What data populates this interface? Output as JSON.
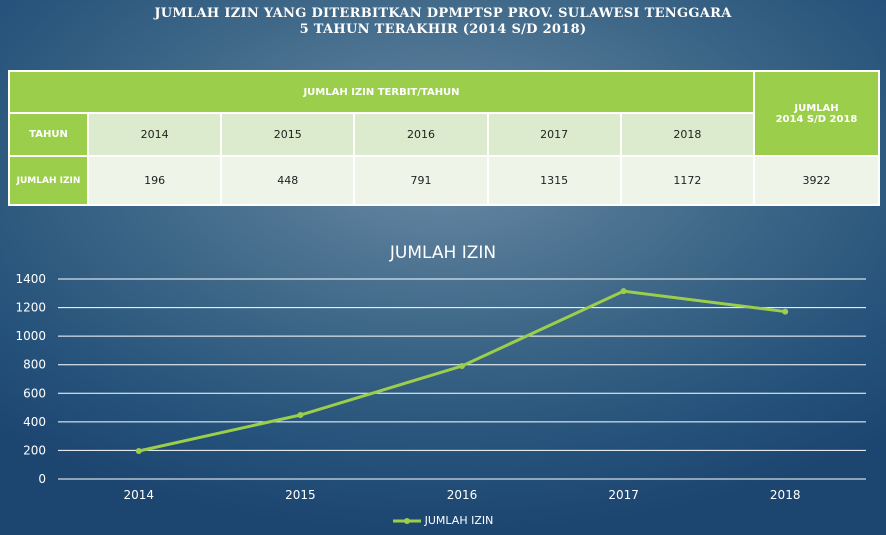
{
  "title": {
    "line1": "JUMLAH IZIN YANG DITERBITKAN DPMPTSP PROV. SULAWESI TENGGARA",
    "line2": "5 TAHUN TERAKHIR (2014 S/D 2018)"
  },
  "table": {
    "group_header": "JUMLAH IZIN TERBIT/TAHUN",
    "total_header_1": "JUMLAH",
    "total_header_2": "2014 S/D 2018",
    "row_label_year": "TAHUN",
    "years": [
      "2014",
      "2015",
      "2016",
      "2017",
      "2018"
    ],
    "row_label_count": "JUMLAH IZIN",
    "counts": [
      "196",
      "448",
      "791",
      "1315",
      "1172"
    ],
    "total": "3922"
  },
  "colors": {
    "accent": "#9bcf4b",
    "line": "#9bcf4b",
    "grid": "#ffffff"
  },
  "chart_data": {
    "type": "line",
    "title": "JUMLAH IZIN",
    "categories": [
      "2014",
      "2015",
      "2016",
      "2017",
      "2018"
    ],
    "series": [
      {
        "name": "JUMLAH IZIN",
        "values": [
          196,
          448,
          791,
          1315,
          1172
        ]
      }
    ],
    "ylim": [
      0,
      1400
    ],
    "yticks": [
      0,
      200,
      400,
      600,
      800,
      1000,
      1200,
      1400
    ],
    "grid": true,
    "legend": "bottom"
  }
}
